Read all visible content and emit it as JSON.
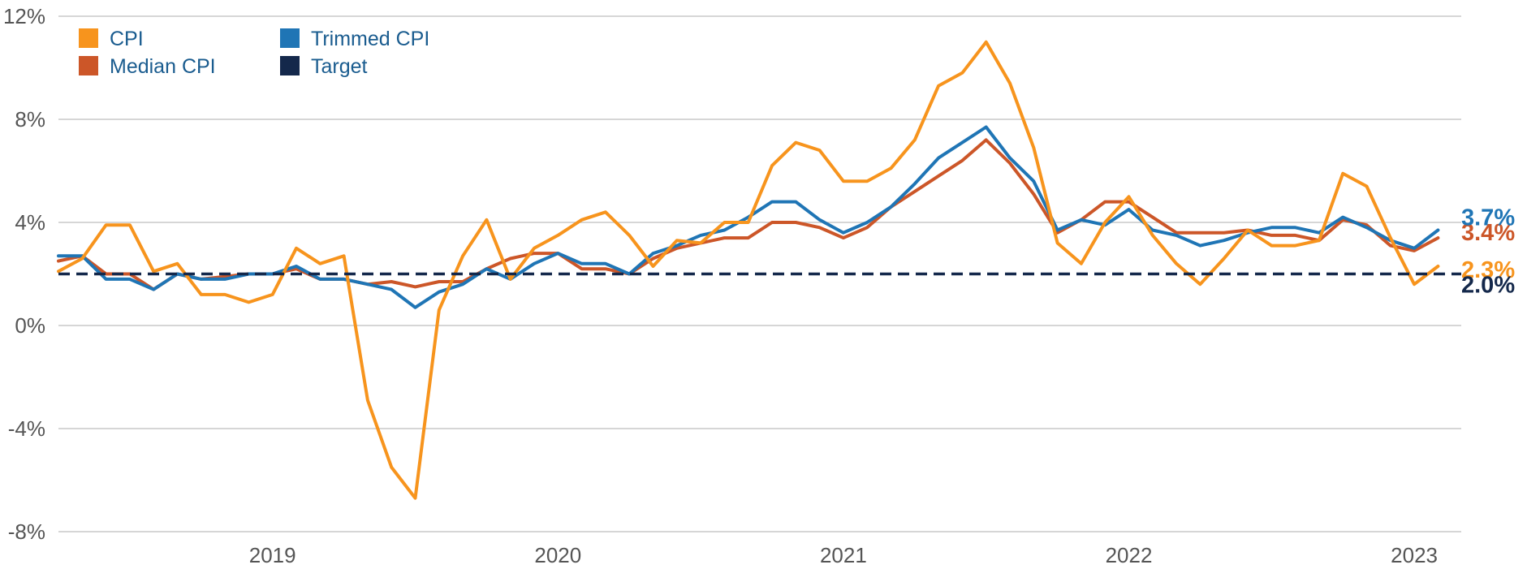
{
  "chart_data": {
    "type": "line",
    "x_start": "2018-09",
    "y_ticks": [
      "12%",
      "8%",
      "4%",
      "0%",
      "-4%",
      "-8%"
    ],
    "y_tick_values": [
      12,
      8,
      4,
      0,
      -4,
      -8
    ],
    "ylim": [
      -8,
      12
    ],
    "grid": true,
    "x_ticks": [
      {
        "label": "2019",
        "month": "2019-06"
      },
      {
        "label": "2020",
        "month": "2020-06"
      },
      {
        "label": "2021",
        "month": "2021-06"
      },
      {
        "label": "2022",
        "month": "2022-06"
      },
      {
        "label": "2023",
        "month": "2023-06"
      }
    ],
    "legend_position": "top-left",
    "series": [
      {
        "name": "CPI",
        "color": "#f7941d",
        "end_label": "2.3%",
        "values": [
          2.1,
          2.6,
          3.9,
          3.9,
          2.1,
          2.4,
          1.2,
          1.2,
          0.9,
          1.2,
          3.0,
          2.4,
          2.7,
          -2.9,
          -5.5,
          -6.7,
          0.6,
          2.7,
          4.1,
          1.8,
          3.0,
          3.5,
          4.1,
          4.4,
          3.5,
          2.3,
          3.3,
          3.2,
          4.0,
          4.0,
          6.2,
          7.1,
          6.8,
          5.6,
          5.6,
          6.1,
          7.2,
          9.3,
          9.8,
          11.0,
          9.4,
          6.9,
          3.2,
          2.4,
          4.0,
          5.0,
          3.5,
          2.4,
          1.6,
          2.6,
          3.7,
          3.1,
          3.1,
          3.3,
          5.9,
          5.4,
          3.4,
          1.6,
          2.3
        ]
      },
      {
        "name": "Median CPI",
        "color": "#cc5628",
        "end_label": "3.4%",
        "values": [
          2.5,
          2.7,
          2.0,
          2.0,
          1.4,
          2.0,
          1.8,
          1.9,
          2.0,
          2.0,
          2.2,
          1.8,
          1.8,
          1.6,
          1.7,
          1.5,
          1.7,
          1.7,
          2.2,
          2.6,
          2.8,
          2.8,
          2.2,
          2.2,
          2.0,
          2.6,
          3.0,
          3.2,
          3.4,
          3.4,
          4.0,
          4.0,
          3.8,
          3.4,
          3.8,
          4.6,
          5.2,
          5.8,
          6.4,
          7.2,
          6.3,
          5.1,
          3.6,
          4.1,
          4.8,
          4.8,
          4.2,
          3.6,
          3.6,
          3.6,
          3.7,
          3.5,
          3.5,
          3.3,
          4.1,
          3.9,
          3.1,
          2.9,
          3.4
        ]
      },
      {
        "name": "Trimmed CPI",
        "color": "#1f75b5",
        "end_label": "3.7%",
        "values": [
          2.7,
          2.7,
          1.8,
          1.8,
          1.4,
          2.0,
          1.8,
          1.8,
          2.0,
          2.0,
          2.3,
          1.8,
          1.8,
          1.6,
          1.4,
          0.7,
          1.3,
          1.6,
          2.2,
          1.8,
          2.4,
          2.8,
          2.4,
          2.4,
          2.0,
          2.8,
          3.1,
          3.5,
          3.7,
          4.2,
          4.8,
          4.8,
          4.1,
          3.6,
          4.0,
          4.6,
          5.5,
          6.5,
          7.1,
          7.7,
          6.5,
          5.6,
          3.7,
          4.1,
          3.9,
          4.5,
          3.7,
          3.5,
          3.1,
          3.3,
          3.6,
          3.8,
          3.8,
          3.6,
          4.2,
          3.8,
          3.3,
          3.0,
          3.7
        ]
      },
      {
        "name": "Target",
        "color": "#14284b",
        "end_label": "2.0%",
        "dashed": true,
        "values": [
          2.0
        ]
      }
    ]
  }
}
